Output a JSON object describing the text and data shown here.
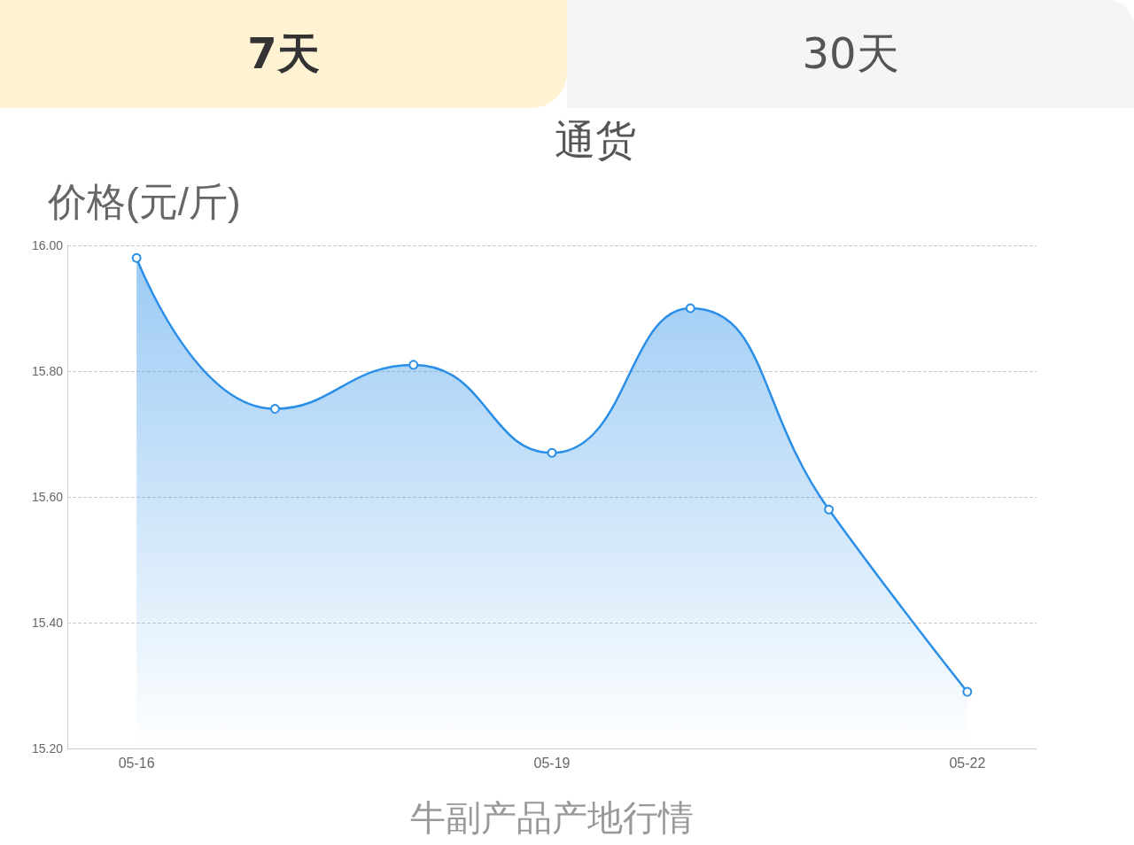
{
  "chart_data": {
    "type": "area",
    "title": "通货",
    "ylabel": "价格(元/斤)",
    "xlabel": "牛副产品产地行情",
    "annotations": [
      "7天",
      "30天"
    ],
    "categories": [
      "05-16",
      null,
      null,
      "05-19",
      null,
      null,
      "05-22"
    ],
    "series": [
      {
        "color": "#2b8fe8",
        "values": [
          15.98,
          15.74,
          15.81,
          15.67,
          15.9,
          15.58,
          15.29
        ]
      }
    ],
    "ylim": [
      15.2,
      16.0
    ],
    "yticks": [
      {
        "value": 15.2,
        "label": "15.20"
      },
      {
        "value": 15.4,
        "label": "15.40"
      },
      {
        "value": 15.6,
        "label": "15.60"
      },
      {
        "value": 15.8,
        "label": "15.80"
      },
      {
        "value": 16.0,
        "label": "16.00"
      }
    ],
    "grid": "y",
    "marker": "circle",
    "line_style": "solid"
  }
}
